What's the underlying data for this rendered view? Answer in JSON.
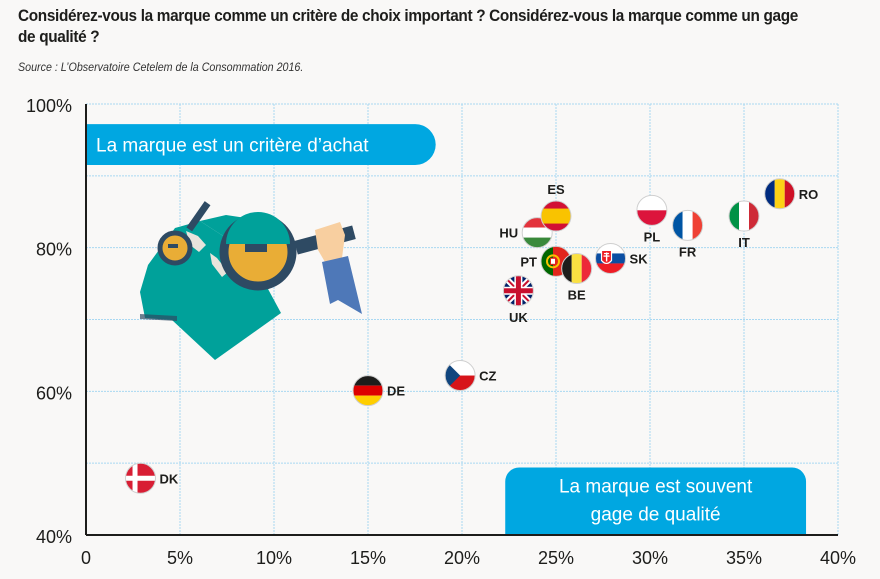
{
  "header": {
    "title": "Considérez-vous la marque comme un critère de choix important ? Considérez-vous la marque comme un gage de qualité ?",
    "source": "Source : L’Observatoire Cetelem de la Consommation 2016."
  },
  "colors": {
    "accent": "#00a7e1",
    "grid": "#a9d8f2",
    "axis": "#1d1d1b",
    "background": "#f9f8f7"
  },
  "chart_data": {
    "type": "scatter",
    "title": "Considérez-vous la marque comme un critère de choix important ? Considérez-vous la marque comme un gage de qualité ?",
    "xlabel": "",
    "ylabel": "",
    "xlim": [
      0,
      40
    ],
    "ylim": [
      40,
      100
    ],
    "x_ticks": [
      0,
      5,
      10,
      15,
      20,
      25,
      30,
      35,
      40
    ],
    "x_tick_labels": [
      "0",
      "5%",
      "10%",
      "15%",
      "20%",
      "25%",
      "30%",
      "35%",
      "40%"
    ],
    "y_ticks": [
      40,
      60,
      80,
      100
    ],
    "y_tick_labels": [
      "40%",
      "60%",
      "80%",
      "100%"
    ],
    "grid": true,
    "grid_x_step": 5,
    "grid_y_step": 10,
    "annotations": {
      "y_axis_meaning": "La marque est un critère d’achat",
      "x_axis_meaning_line1": "La marque est souvent",
      "x_axis_meaning_line2": "gage de qualité"
    },
    "points": [
      {
        "label": "DK",
        "x": 2.9,
        "y": 47.9,
        "flag": "denmark",
        "label_pos": "right"
      },
      {
        "label": "DE",
        "x": 15.0,
        "y": 60.1,
        "flag": "germany",
        "label_pos": "right"
      },
      {
        "label": "CZ",
        "x": 19.9,
        "y": 62.2,
        "flag": "czechia",
        "label_pos": "right"
      },
      {
        "label": "UK",
        "x": 23.0,
        "y": 74.0,
        "flag": "uk",
        "label_pos": "below"
      },
      {
        "label": "HU",
        "x": 24.0,
        "y": 82.1,
        "flag": "hungary",
        "label_pos": "left"
      },
      {
        "label": "ES",
        "x": 25.0,
        "y": 84.4,
        "flag": "spain",
        "label_pos": "above"
      },
      {
        "label": "PT",
        "x": 25.0,
        "y": 78.1,
        "flag": "portugal",
        "label_pos": "left"
      },
      {
        "label": "BE",
        "x": 26.1,
        "y": 77.1,
        "flag": "belgium",
        "label_pos": "below"
      },
      {
        "label": "SK",
        "x": 27.9,
        "y": 78.5,
        "flag": "slovakia",
        "label_pos": "right"
      },
      {
        "label": "PL",
        "x": 30.1,
        "y": 85.2,
        "flag": "poland",
        "label_pos": "below"
      },
      {
        "label": "FR",
        "x": 32.0,
        "y": 83.1,
        "flag": "france",
        "label_pos": "below"
      },
      {
        "label": "IT",
        "x": 35.0,
        "y": 84.4,
        "flag": "italy",
        "label_pos": "below"
      },
      {
        "label": "RO",
        "x": 36.9,
        "y": 87.5,
        "flag": "romania",
        "label_pos": "right"
      }
    ]
  },
  "illustration": {
    "icon": "shirt-magnifying-glass-illustration"
  }
}
